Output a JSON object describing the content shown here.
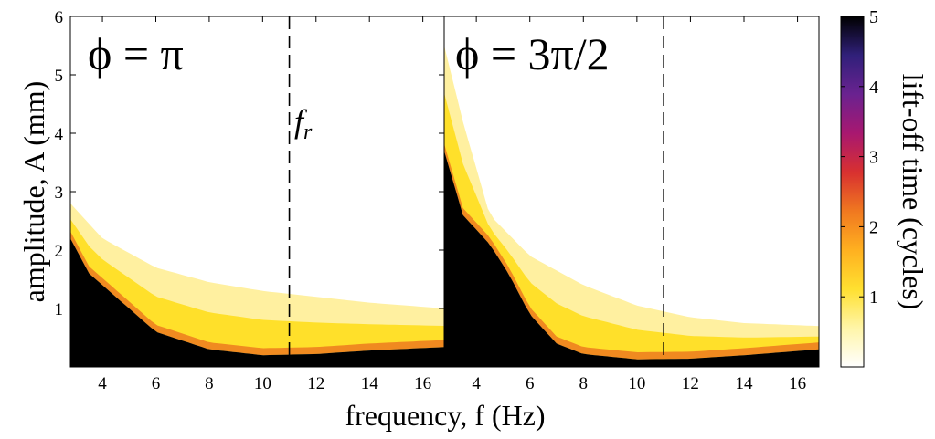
{
  "chart_data": {
    "type": "heatmap",
    "xlabel": "frequency, f (Hz)",
    "ylabel": "amplitude, A (mm)",
    "colorbar_label": "lift-off time (cycles)",
    "colorbar_ticks": [
      "1",
      "2",
      "3",
      "4",
      "5"
    ],
    "colorbar_range": [
      0,
      5
    ],
    "colormap": [
      "#ffffff",
      "#fff5a8",
      "#ffe030",
      "#ffb020",
      "#f07820",
      "#d83030",
      "#a81870",
      "#6a2290",
      "#30207a",
      "#000000"
    ],
    "ylim": [
      0,
      6
    ],
    "y_ticks": [
      "1",
      "2",
      "3",
      "4",
      "5",
      "6"
    ],
    "x_ticks": [
      "4",
      "6",
      "8",
      "10",
      "12",
      "14",
      "16"
    ],
    "panels": [
      {
        "label": "ϕ = π",
        "xlim": [
          2.8,
          16.8
        ],
        "resonance_line_x": 11,
        "resonance_label": "f",
        "resonance_label_sub": "r",
        "liftoff_threshold_A": [
          [
            2.8,
            2.2
          ],
          [
            3.5,
            1.6
          ],
          [
            4.5,
            1.2
          ],
          [
            6,
            0.6
          ],
          [
            8,
            0.3
          ],
          [
            10,
            0.2
          ],
          [
            12,
            0.22
          ],
          [
            14,
            0.28
          ],
          [
            16.8,
            0.34
          ]
        ],
        "colored_band_top_A": [
          [
            2.8,
            2.8
          ],
          [
            4,
            2.2
          ],
          [
            6,
            1.7
          ],
          [
            8,
            1.45
          ],
          [
            10,
            1.3
          ],
          [
            12,
            1.2
          ],
          [
            14,
            1.1
          ],
          [
            16.8,
            1.0
          ]
        ]
      },
      {
        "label": "ϕ = 3π/2",
        "xlim": [
          2.8,
          16.8
        ],
        "resonance_line_x": 11,
        "liftoff_threshold_A": [
          [
            2.8,
            3.7
          ],
          [
            3.5,
            2.6
          ],
          [
            4.5,
            2.1
          ],
          [
            5.2,
            1.6
          ],
          [
            6,
            0.9
          ],
          [
            7,
            0.4
          ],
          [
            8,
            0.22
          ],
          [
            10,
            0.13
          ],
          [
            12,
            0.14
          ],
          [
            14,
            0.2
          ],
          [
            16.8,
            0.3
          ]
        ],
        "colored_band_top_A": [
          [
            2.8,
            5.5
          ],
          [
            3.5,
            4.2
          ],
          [
            4.5,
            2.6
          ],
          [
            6,
            1.9
          ],
          [
            8,
            1.4
          ],
          [
            10,
            1.05
          ],
          [
            12,
            0.85
          ],
          [
            14,
            0.75
          ],
          [
            16.8,
            0.7
          ]
        ]
      }
    ]
  }
}
